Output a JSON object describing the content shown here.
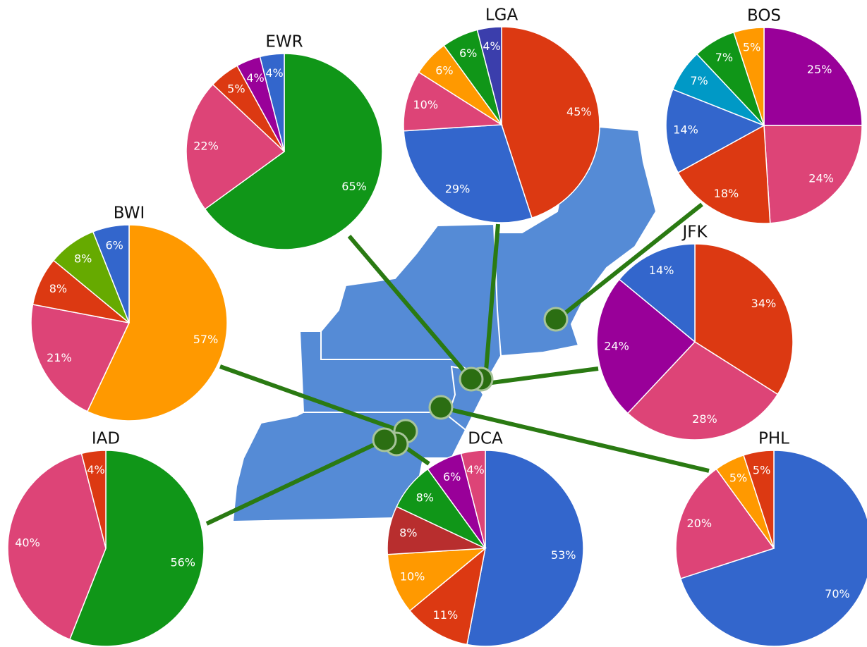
{
  "chart_data": [
    {
      "type": "pie",
      "title": "EWR",
      "values": [
        65,
        22,
        5,
        4,
        4
      ],
      "value_labels": [
        "65%",
        "22%",
        "5%",
        "4%",
        "4%"
      ],
      "colors": [
        "#109618",
        "#dd4477",
        "#dc3912",
        "#990099",
        "#3366cc"
      ]
    },
    {
      "type": "pie",
      "title": "LGA",
      "values": [
        45,
        29,
        10,
        6,
        6,
        4
      ],
      "value_labels": [
        "45%",
        "29%",
        "10%",
        "6%",
        "6%",
        "4%"
      ],
      "colors": [
        "#dc3912",
        "#3366cc",
        "#dd4477",
        "#ff9900",
        "#109618",
        "#3b3eac"
      ]
    },
    {
      "type": "pie",
      "title": "BOS",
      "values": [
        25,
        24,
        18,
        14,
        7,
        7,
        5
      ],
      "value_labels": [
        "25%",
        "24%",
        "18%",
        "14%",
        "7%",
        "7%",
        "5%"
      ],
      "colors": [
        "#990099",
        "#dd4477",
        "#dc3912",
        "#3366cc",
        "#0099c6",
        "#109618",
        "#ff9900"
      ]
    },
    {
      "type": "pie",
      "title": "BWI",
      "values": [
        57,
        21,
        8,
        8,
        6
      ],
      "value_labels": [
        "57%",
        "21%",
        "8%",
        "8%",
        "6%"
      ],
      "colors": [
        "#ff9900",
        "#dd4477",
        "#dc3912",
        "#66aa00",
        "#3366cc"
      ]
    },
    {
      "type": "pie",
      "title": "JFK",
      "values": [
        34,
        28,
        24,
        14
      ],
      "value_labels": [
        "34%",
        "28%",
        "24%",
        "14%"
      ],
      "colors": [
        "#dc3912",
        "#dd4477",
        "#990099",
        "#3366cc"
      ]
    },
    {
      "type": "pie",
      "title": "IAD",
      "values": [
        56,
        40,
        4
      ],
      "value_labels": [
        "56%",
        "40%",
        "4%"
      ],
      "colors": [
        "#109618",
        "#dd4477",
        "#dc3912"
      ]
    },
    {
      "type": "pie",
      "title": "DCA",
      "values": [
        53,
        11,
        10,
        8,
        8,
        6,
        4
      ],
      "value_labels": [
        "53%",
        "11%",
        "10%",
        "8%",
        "8%",
        "6%",
        "4%"
      ],
      "colors": [
        "#3366cc",
        "#dc3912",
        "#ff9900",
        "#b82e2e",
        "#109618",
        "#990099",
        "#dd4477"
      ]
    },
    {
      "type": "pie",
      "title": "PHL",
      "values": [
        70,
        20,
        5,
        5
      ],
      "value_labels": [
        "70%",
        "20%",
        "5%",
        "5%"
      ],
      "colors": [
        "#3366cc",
        "#dd4477",
        "#ff9900",
        "#dc3912"
      ]
    }
  ]
}
